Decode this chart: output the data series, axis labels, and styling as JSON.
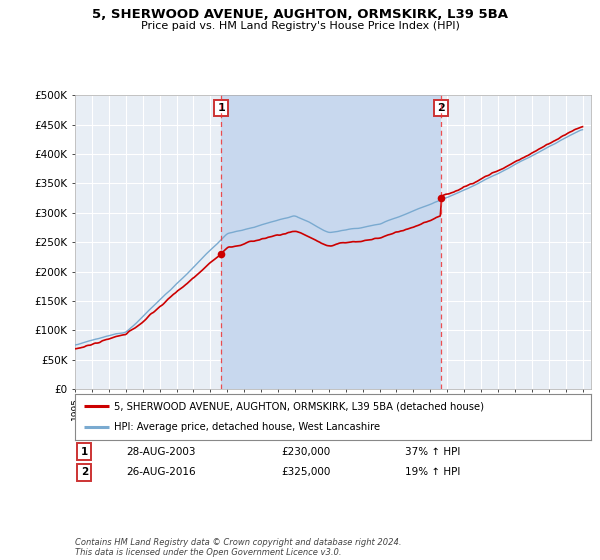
{
  "title": "5, SHERWOOD AVENUE, AUGHTON, ORMSKIRK, L39 5BA",
  "subtitle": "Price paid vs. HM Land Registry's House Price Index (HPI)",
  "ylim": [
    0,
    500000
  ],
  "yticks": [
    0,
    50000,
    100000,
    150000,
    200000,
    250000,
    300000,
    350000,
    400000,
    450000,
    500000
  ],
  "background_color": "#ffffff",
  "plot_bg_color": "#dce8f5",
  "plot_bg_color2": "#e8eef5",
  "grid_color": "#ffffff",
  "sale1_date_num": 2003.65,
  "sale1_price": 230000,
  "sale1_date_str": "28-AUG-2003",
  "sale1_hpi_change": "37% ↑ HPI",
  "sale2_date_num": 2016.65,
  "sale2_price": 325000,
  "sale2_date_str": "26-AUG-2016",
  "sale2_hpi_change": "19% ↑ HPI",
  "property_label": "5, SHERWOOD AVENUE, AUGHTON, ORMSKIRK, L39 5BA (detached house)",
  "hpi_label": "HPI: Average price, detached house, West Lancashire",
  "property_line_color": "#cc0000",
  "hpi_line_color": "#7aaad0",
  "vline_color": "#ee3333",
  "footer": "Contains HM Land Registry data © Crown copyright and database right 2024.\nThis data is licensed under the Open Government Licence v3.0.",
  "xlim_start": 1995.0,
  "xlim_end": 2025.5,
  "shade_color": "#c8d8ee"
}
